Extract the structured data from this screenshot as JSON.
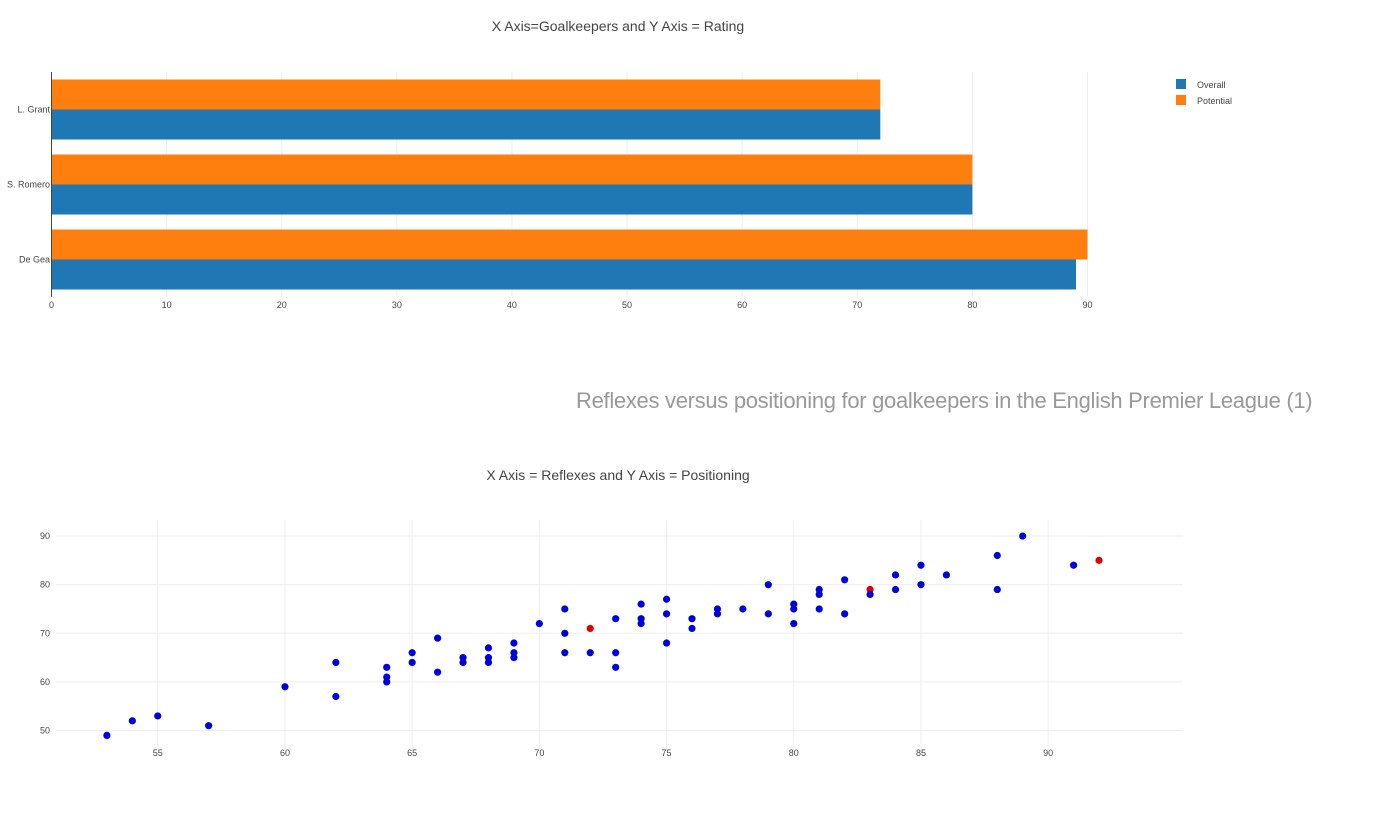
{
  "section_heading": "Reflexes versus positioning for goalkeepers in the English Premier League (1)",
  "colors": {
    "overall": "#1f77b4",
    "potential": "#ff7f0e",
    "scatter_default": "#0000dd",
    "scatter_highlight": "#dd0000"
  },
  "chart_data": [
    {
      "type": "bar",
      "orientation": "horizontal",
      "title": "X Axis=Goalkeepers and Y Axis = Rating",
      "categories": [
        "De Gea",
        "S. Romero",
        "L. Grant"
      ],
      "series": [
        {
          "name": "Overall",
          "values": [
            89,
            80,
            72
          ]
        },
        {
          "name": "Potential",
          "values": [
            90,
            80,
            72
          ]
        }
      ],
      "xlim": [
        0,
        90
      ],
      "xticks": [
        0,
        10,
        20,
        30,
        40,
        50,
        60,
        70,
        80,
        90
      ],
      "legend": "top-right",
      "grid": true
    },
    {
      "type": "scatter",
      "title": "X Axis = Reflexes and Y Axis = Positioning",
      "xlim": [
        51,
        95.3
      ],
      "ylim": [
        46,
        93.3
      ],
      "xticks": [
        55,
        60,
        65,
        70,
        75,
        80,
        85,
        90
      ],
      "yticks": [
        50,
        60,
        70,
        80,
        90
      ],
      "grid": true,
      "points": [
        {
          "x": 53,
          "y": 49
        },
        {
          "x": 54,
          "y": 52
        },
        {
          "x": 55,
          "y": 53
        },
        {
          "x": 57,
          "y": 51
        },
        {
          "x": 60,
          "y": 59
        },
        {
          "x": 62,
          "y": 64
        },
        {
          "x": 62,
          "y": 57
        },
        {
          "x": 64,
          "y": 63
        },
        {
          "x": 64,
          "y": 61
        },
        {
          "x": 64,
          "y": 60
        },
        {
          "x": 65,
          "y": 66
        },
        {
          "x": 65,
          "y": 64
        },
        {
          "x": 66,
          "y": 69
        },
        {
          "x": 66,
          "y": 62
        },
        {
          "x": 67,
          "y": 65
        },
        {
          "x": 67,
          "y": 64
        },
        {
          "x": 68,
          "y": 67
        },
        {
          "x": 68,
          "y": 65
        },
        {
          "x": 68,
          "y": 64
        },
        {
          "x": 69,
          "y": 68
        },
        {
          "x": 69,
          "y": 66
        },
        {
          "x": 69,
          "y": 65
        },
        {
          "x": 70,
          "y": 72
        },
        {
          "x": 71,
          "y": 75
        },
        {
          "x": 71,
          "y": 70
        },
        {
          "x": 71,
          "y": 66
        },
        {
          "x": 72,
          "y": 71,
          "highlight": true
        },
        {
          "x": 72,
          "y": 66
        },
        {
          "x": 73,
          "y": 73
        },
        {
          "x": 73,
          "y": 66
        },
        {
          "x": 73,
          "y": 63
        },
        {
          "x": 74,
          "y": 76
        },
        {
          "x": 74,
          "y": 73
        },
        {
          "x": 74,
          "y": 72
        },
        {
          "x": 75,
          "y": 77
        },
        {
          "x": 75,
          "y": 74
        },
        {
          "x": 75,
          "y": 68
        },
        {
          "x": 76,
          "y": 73
        },
        {
          "x": 76,
          "y": 71
        },
        {
          "x": 77,
          "y": 75
        },
        {
          "x": 77,
          "y": 74
        },
        {
          "x": 78,
          "y": 75
        },
        {
          "x": 79,
          "y": 80
        },
        {
          "x": 79,
          "y": 74
        },
        {
          "x": 80,
          "y": 76
        },
        {
          "x": 80,
          "y": 75
        },
        {
          "x": 80,
          "y": 72
        },
        {
          "x": 81,
          "y": 79
        },
        {
          "x": 81,
          "y": 78
        },
        {
          "x": 81,
          "y": 75
        },
        {
          "x": 82,
          "y": 81
        },
        {
          "x": 82,
          "y": 74
        },
        {
          "x": 83,
          "y": 79,
          "highlight": true
        },
        {
          "x": 83,
          "y": 78
        },
        {
          "x": 84,
          "y": 82
        },
        {
          "x": 84,
          "y": 79
        },
        {
          "x": 85,
          "y": 84
        },
        {
          "x": 85,
          "y": 80
        },
        {
          "x": 86,
          "y": 82
        },
        {
          "x": 88,
          "y": 86
        },
        {
          "x": 88,
          "y": 79
        },
        {
          "x": 89,
          "y": 90
        },
        {
          "x": 91,
          "y": 84
        },
        {
          "x": 92,
          "y": 85,
          "highlight": true
        }
      ]
    }
  ]
}
